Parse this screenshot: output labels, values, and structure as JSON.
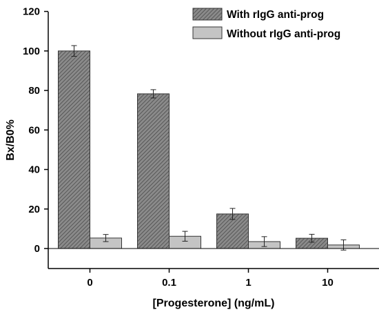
{
  "chart_data": {
    "type": "bar",
    "categories": [
      "0",
      "0.1",
      "1",
      "10"
    ],
    "xlabel": "[Progesterone] (ng/mL)",
    "ylabel": "Bx/B0%",
    "ylim": [
      -10,
      120
    ],
    "yticks": [
      0,
      20,
      40,
      60,
      80,
      100,
      120
    ],
    "ytick_labels": [
      "0",
      "20",
      "40",
      "60",
      "80",
      "100",
      "120"
    ],
    "grid": false,
    "legend_position": "top-right",
    "series": [
      {
        "name": "With rIgG anti-prog",
        "values": [
          100,
          78.3,
          17.5,
          5.2
        ],
        "errors": [
          2.7,
          2.1,
          2.8,
          2.0
        ],
        "color": "#7a7a7a",
        "pattern": "hatched"
      },
      {
        "name": "Without rIgG anti-prog",
        "values": [
          5.3,
          6.2,
          3.5,
          1.8
        ],
        "errors": [
          1.8,
          2.5,
          2.5,
          2.6
        ],
        "color": "#c4c4c4",
        "pattern": "solid"
      }
    ]
  }
}
